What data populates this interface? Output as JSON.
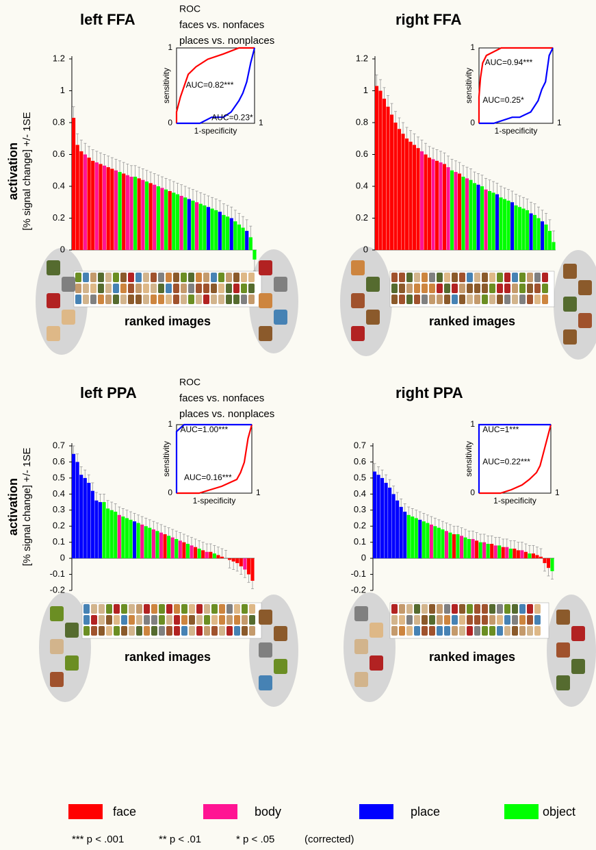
{
  "chart_data": [
    {
      "type": "bar",
      "title": "left FFA",
      "ylabel": "activation",
      "ylabel_sub": "[% signal change] +/- 1SE",
      "ylim": [
        0,
        1.2
      ],
      "yticks": [
        0,
        0.2,
        0.4,
        0.6,
        0.8,
        1,
        1.2
      ],
      "error": 0.07,
      "values": [
        0.83,
        0.66,
        0.62,
        0.6,
        0.58,
        0.56,
        0.55,
        0.54,
        0.53,
        0.52,
        0.51,
        0.5,
        0.49,
        0.48,
        0.47,
        0.46,
        0.46,
        0.45,
        0.44,
        0.43,
        0.42,
        0.41,
        0.4,
        0.39,
        0.38,
        0.37,
        0.36,
        0.35,
        0.34,
        0.33,
        0.32,
        0.31,
        0.3,
        0.29,
        0.28,
        0.27,
        0.26,
        0.25,
        0.24,
        0.22,
        0.21,
        0.2,
        0.18,
        0.16,
        0.14,
        0.12,
        0.08,
        -0.06
      ],
      "groups": [
        "face",
        "face",
        "face",
        "body",
        "face",
        "face",
        "body",
        "face",
        "body",
        "face",
        "face",
        "body",
        "object",
        "face",
        "body",
        "body",
        "object",
        "face",
        "body",
        "object",
        "face",
        "body",
        "object",
        "body",
        "object",
        "face",
        "object",
        "object",
        "body",
        "object",
        "place",
        "object",
        "body",
        "object",
        "object",
        "place",
        "object",
        "object",
        "place",
        "object",
        "object",
        "place",
        "object",
        "object",
        "object",
        "place",
        "object",
        "object"
      ],
      "xlabel": "ranked images",
      "roc": {
        "title": "ROC",
        "legend": [
          "faces vs. nonfaces",
          "places vs. nonplaces"
        ],
        "xlabel": "1-specificity",
        "ylabel": "sensitivity",
        "xticks": [
          1
        ],
        "yticks": [
          0,
          1
        ],
        "curves": [
          {
            "color": "#ff0000",
            "label": "AUC=0.82***",
            "x": [
              0,
              0,
              0.05,
              0.1,
              0.15,
              0.25,
              0.4,
              0.6,
              0.8,
              1
            ],
            "y": [
              0,
              0.15,
              0.35,
              0.5,
              0.65,
              0.75,
              0.85,
              0.92,
              1,
              1
            ]
          },
          {
            "color": "#0000ff",
            "label": "AUC=0.23*",
            "x": [
              0,
              0.3,
              0.45,
              0.6,
              0.7,
              0.8,
              0.85,
              0.9,
              0.95,
              1
            ],
            "y": [
              0,
              0,
              0.08,
              0.08,
              0.15,
              0.3,
              0.4,
              0.55,
              0.8,
              1
            ]
          }
        ]
      }
    },
    {
      "type": "bar",
      "title": "right FFA",
      "ylim": [
        0,
        1.2
      ],
      "yticks": [
        0,
        0.2,
        0.4,
        0.6,
        0.8,
        1,
        1.2
      ],
      "error": 0.07,
      "values": [
        1.03,
        1.0,
        0.95,
        0.9,
        0.85,
        0.8,
        0.76,
        0.73,
        0.7,
        0.68,
        0.66,
        0.64,
        0.62,
        0.6,
        0.58,
        0.57,
        0.56,
        0.55,
        0.54,
        0.52,
        0.5,
        0.49,
        0.48,
        0.46,
        0.45,
        0.44,
        0.42,
        0.41,
        0.4,
        0.38,
        0.37,
        0.36,
        0.35,
        0.33,
        0.32,
        0.31,
        0.3,
        0.28,
        0.27,
        0.26,
        0.25,
        0.23,
        0.22,
        0.2,
        0.18,
        0.16,
        0.12,
        0.05
      ],
      "groups": [
        "face",
        "face",
        "face",
        "face",
        "face",
        "face",
        "face",
        "face",
        "face",
        "face",
        "face",
        "face",
        "body",
        "face",
        "face",
        "body",
        "face",
        "body",
        "face",
        "body",
        "object",
        "body",
        "face",
        "object",
        "body",
        "object",
        "object",
        "place",
        "object",
        "body",
        "object",
        "object",
        "place",
        "object",
        "object",
        "object",
        "place",
        "object",
        "object",
        "object",
        "object",
        "place",
        "object",
        "object",
        "place",
        "object",
        "object",
        "object"
      ],
      "xlabel": "ranked images",
      "roc": {
        "xlabel": "1-specificity",
        "ylabel": "sensitivity",
        "xticks": [
          1
        ],
        "yticks": [
          0,
          1
        ],
        "curves": [
          {
            "color": "#ff0000",
            "label": "AUC=0.94***",
            "x": [
              0,
              0,
              0.02,
              0.05,
              0.1,
              0.2,
              0.3,
              1
            ],
            "y": [
              0,
              0.35,
              0.6,
              0.8,
              0.9,
              0.95,
              1,
              1
            ]
          },
          {
            "color": "#0000ff",
            "label": "AUC=0.25*",
            "x": [
              0,
              0.2,
              0.45,
              0.55,
              0.7,
              0.8,
              0.85,
              0.9,
              0.95,
              1
            ],
            "y": [
              0,
              0,
              0.08,
              0.08,
              0.15,
              0.3,
              0.45,
              0.55,
              0.9,
              1
            ]
          }
        ]
      }
    },
    {
      "type": "bar",
      "title": "left PPA",
      "ylabel": "activation",
      "ylabel_sub": "[% signal change] +/- 1SE",
      "ylim": [
        -0.2,
        0.7
      ],
      "yticks": [
        -0.2,
        -0.1,
        0,
        0.1,
        0.2,
        0.3,
        0.4,
        0.5,
        0.6,
        0.7
      ],
      "error": 0.05,
      "values": [
        0.65,
        0.6,
        0.52,
        0.5,
        0.47,
        0.42,
        0.36,
        0.35,
        0.35,
        0.31,
        0.3,
        0.29,
        0.27,
        0.26,
        0.25,
        0.24,
        0.23,
        0.22,
        0.21,
        0.2,
        0.19,
        0.18,
        0.17,
        0.16,
        0.15,
        0.14,
        0.13,
        0.12,
        0.11,
        0.1,
        0.09,
        0.08,
        0.07,
        0.06,
        0.05,
        0.04,
        0.04,
        0.03,
        0.02,
        0.01,
        0.0,
        -0.01,
        -0.02,
        -0.03,
        -0.05,
        -0.07,
        -0.1,
        -0.14
      ],
      "groups": [
        "place",
        "place",
        "place",
        "place",
        "place",
        "place",
        "place",
        "place",
        "object",
        "object",
        "object",
        "object",
        "body",
        "object",
        "object",
        "object",
        "place",
        "object",
        "body",
        "object",
        "object",
        "body",
        "object",
        "body",
        "face",
        "object",
        "body",
        "object",
        "body",
        "face",
        "object",
        "body",
        "face",
        "object",
        "face",
        "body",
        "face",
        "object",
        "face",
        "face",
        "body",
        "face",
        "face",
        "face",
        "face",
        "body",
        "face",
        "face"
      ],
      "xlabel": "ranked images",
      "roc": {
        "title": "ROC",
        "legend": [
          "faces vs. nonfaces",
          "places vs. nonplaces"
        ],
        "xlabel": "1-specificity",
        "ylabel": "sensitivity",
        "xticks": [
          1
        ],
        "yticks": [
          0,
          1
        ],
        "curves": [
          {
            "color": "#ff0000",
            "label": "AUC=0.16***",
            "x": [
              0,
              0.3,
              0.45,
              0.6,
              0.7,
              0.8,
              0.85,
              0.9,
              0.95,
              1
            ],
            "y": [
              0,
              0,
              0.05,
              0.1,
              0.15,
              0.2,
              0.3,
              0.45,
              0.8,
              1
            ]
          },
          {
            "color": "#0000ff",
            "label": "AUC=1.00***",
            "x": [
              0,
              0,
              0.05,
              0.1,
              1
            ],
            "y": [
              0,
              0.9,
              0.95,
              1,
              1
            ]
          }
        ]
      }
    },
    {
      "type": "bar",
      "title": "right PPA",
      "ylim": [
        -0.2,
        0.7
      ],
      "yticks": [
        -0.2,
        -0.1,
        0,
        0.1,
        0.2,
        0.3,
        0.4,
        0.5,
        0.6,
        0.7
      ],
      "error": 0.05,
      "values": [
        0.54,
        0.52,
        0.5,
        0.47,
        0.44,
        0.4,
        0.36,
        0.32,
        0.29,
        0.27,
        0.26,
        0.25,
        0.24,
        0.23,
        0.22,
        0.21,
        0.2,
        0.19,
        0.18,
        0.17,
        0.16,
        0.15,
        0.15,
        0.14,
        0.13,
        0.12,
        0.12,
        0.11,
        0.1,
        0.1,
        0.09,
        0.09,
        0.08,
        0.08,
        0.07,
        0.07,
        0.06,
        0.06,
        0.05,
        0.05,
        0.04,
        0.03,
        0.03,
        0.02,
        0.01,
        -0.03,
        -0.06,
        -0.08
      ],
      "groups": [
        "place",
        "place",
        "place",
        "place",
        "place",
        "place",
        "place",
        "place",
        "place",
        "object",
        "object",
        "object",
        "place",
        "object",
        "object",
        "body",
        "object",
        "object",
        "object",
        "body",
        "object",
        "face",
        "object",
        "body",
        "object",
        "object",
        "body",
        "face",
        "object",
        "body",
        "object",
        "face",
        "body",
        "object",
        "face",
        "body",
        "object",
        "face",
        "face",
        "body",
        "face",
        "object",
        "face",
        "face",
        "face",
        "face",
        "face",
        "object"
      ],
      "xlabel": "ranked images",
      "roc": {
        "xlabel": "1-specificity",
        "ylabel": "sensitivity",
        "xticks": [
          1
        ],
        "yticks": [
          0,
          1
        ],
        "curves": [
          {
            "color": "#ff0000",
            "label": "AUC=0.22***",
            "x": [
              0,
              0.3,
              0.45,
              0.6,
              0.7,
              0.8,
              0.85,
              0.9,
              1
            ],
            "y": [
              0,
              0,
              0.05,
              0.12,
              0.2,
              0.3,
              0.4,
              0.6,
              1
            ]
          },
          {
            "color": "#0000ff",
            "label": "AUC=1***",
            "x": [
              0,
              0,
              1
            ],
            "y": [
              0,
              1,
              1
            ]
          }
        ]
      }
    }
  ],
  "legend": [
    {
      "name": "face",
      "color": "#ff0000"
    },
    {
      "name": "body",
      "color": "#ff1493"
    },
    {
      "name": "place",
      "color": "#0000ff"
    },
    {
      "name": "object",
      "color": "#00ff00"
    }
  ],
  "footnote": [
    "*** p < .001",
    "** p < .01",
    "* p < .05",
    "(corrected)"
  ]
}
